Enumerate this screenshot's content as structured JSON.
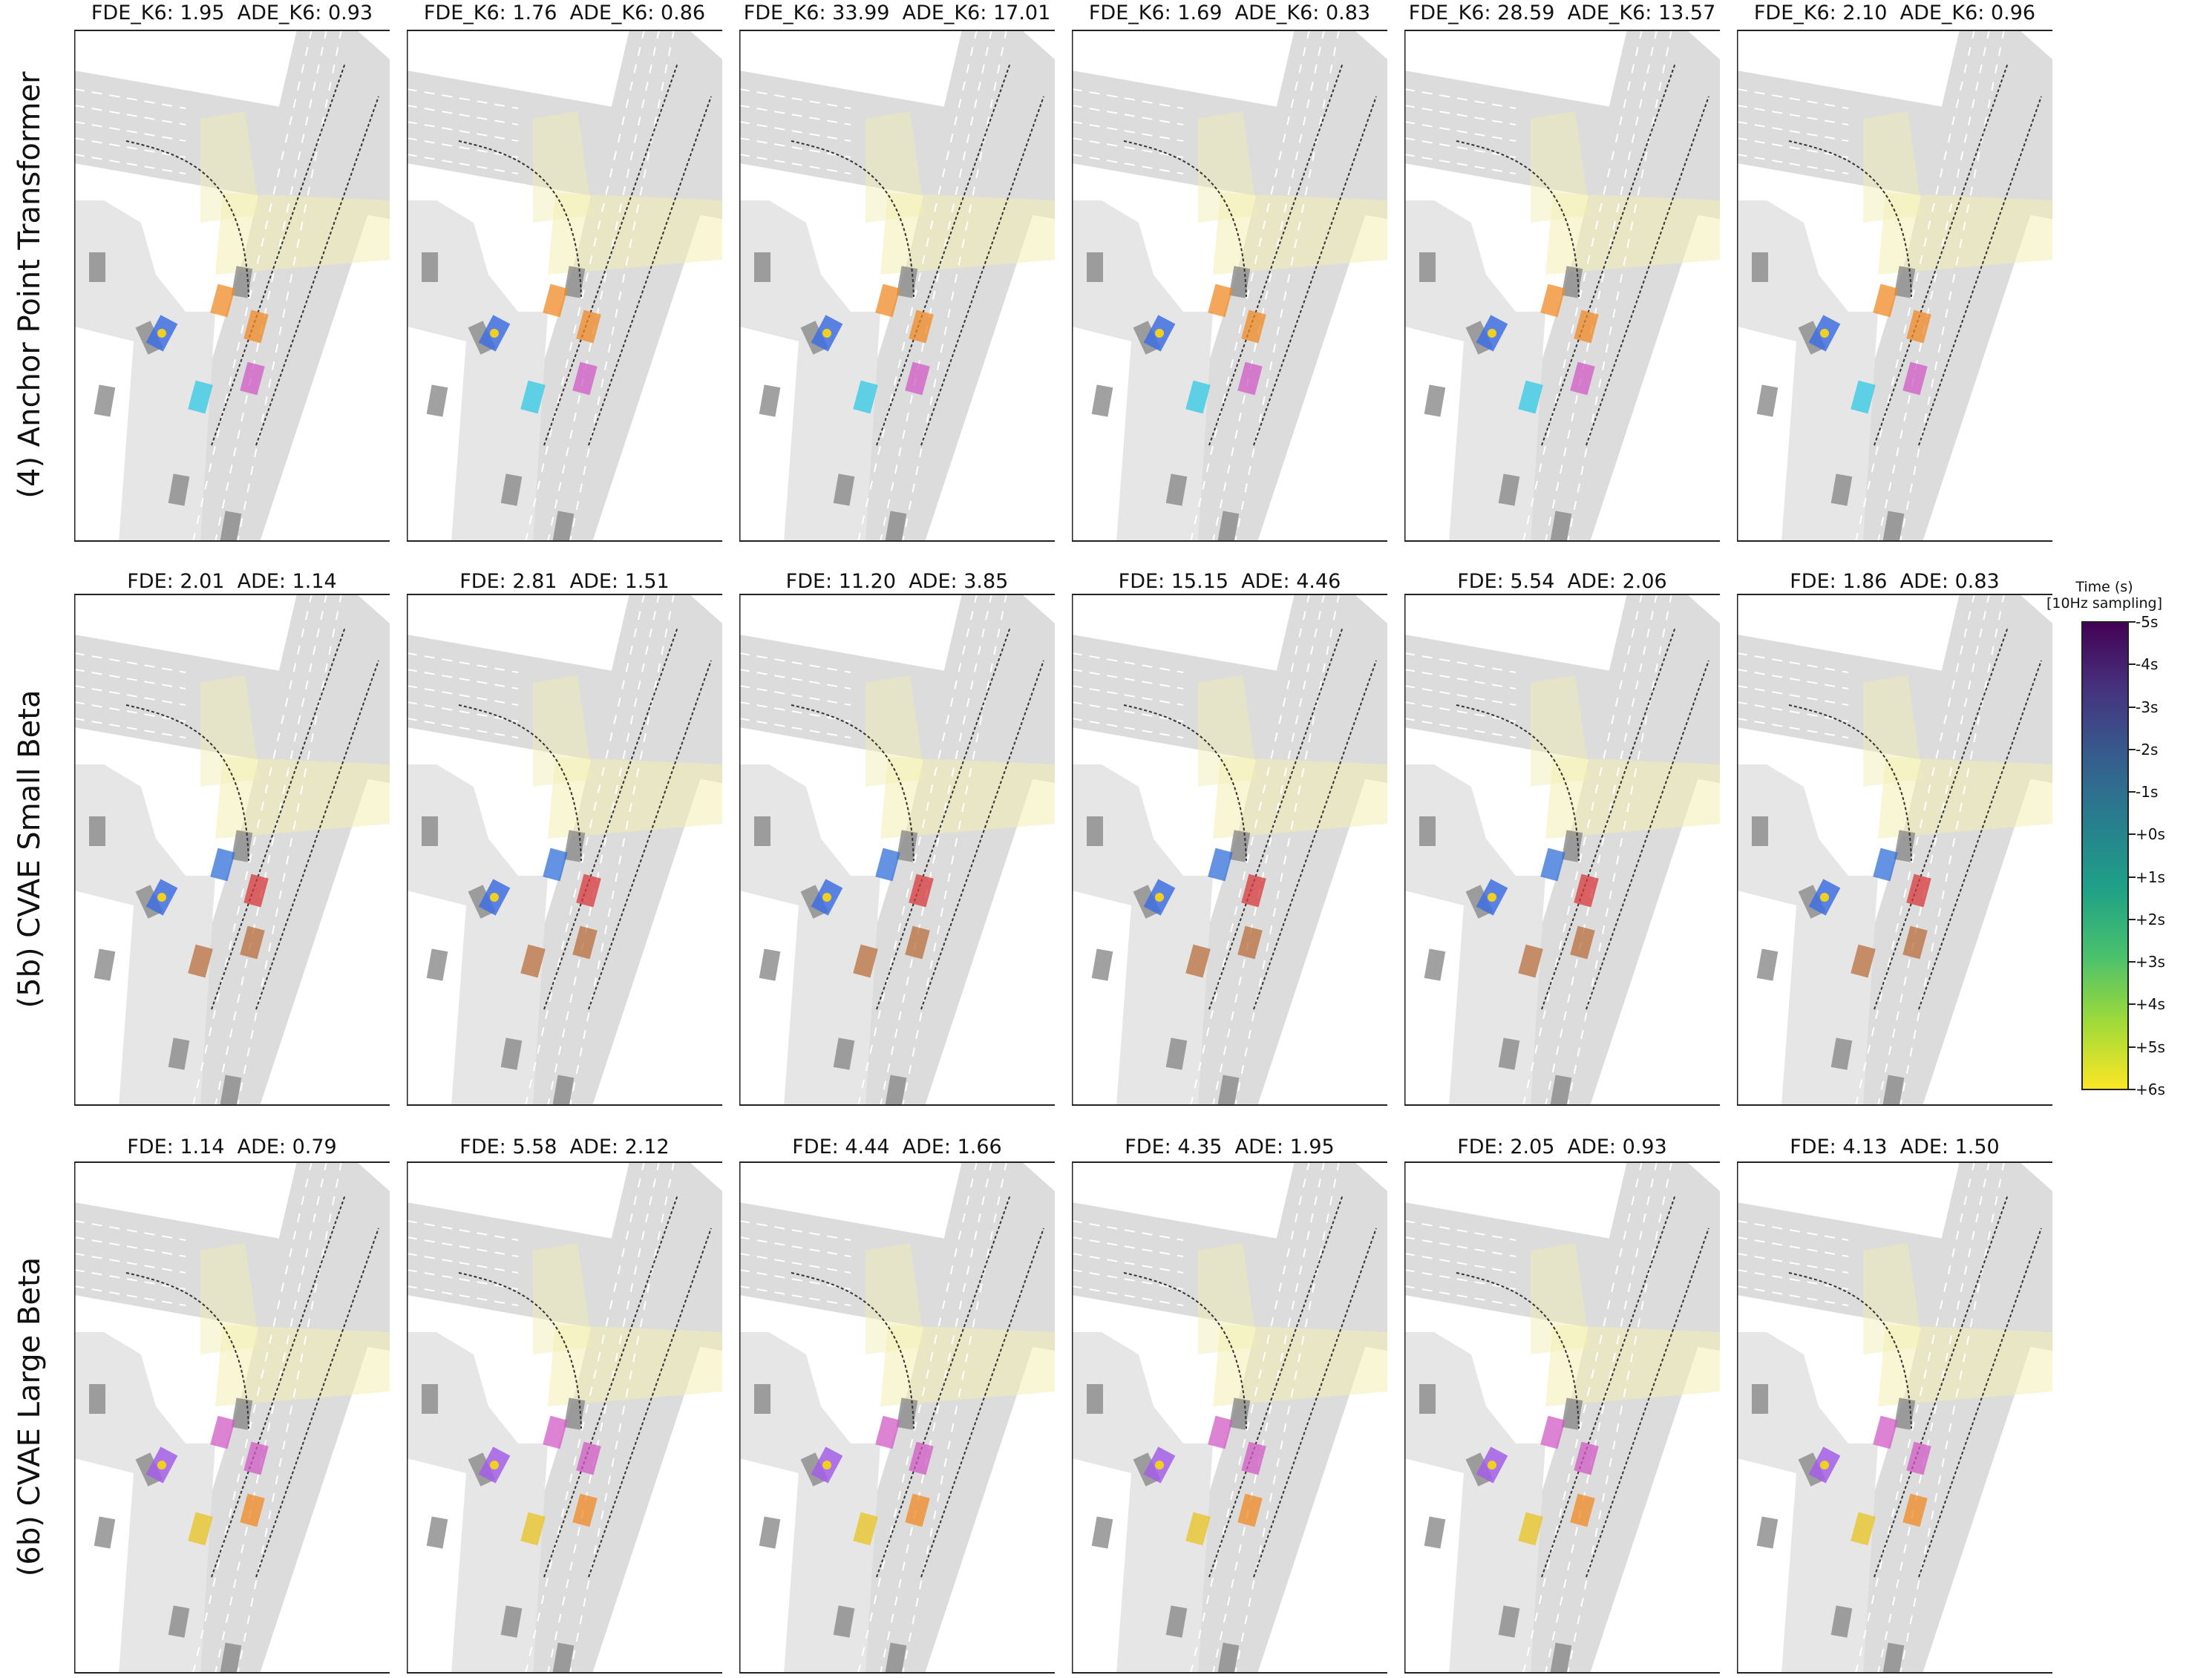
{
  "rows": [
    {
      "label": "(4) Anchor Point Transformer",
      "agent_color": "#3f6fe0",
      "panels": [
        {
          "title": "FDE_K6: 1.95  ADE_K6: 0.93",
          "markers": [
            "#f08a24",
            "#f08a24",
            "#2fc8e6",
            "#d05bc4"
          ],
          "variant": "good"
        },
        {
          "title": "FDE_K6: 1.76  ADE_K6: 0.86",
          "markers": [
            "#f08a24",
            "#f08a24",
            "#2fc8e6",
            "#d05bc4"
          ],
          "variant": "good"
        },
        {
          "title": "FDE_K6: 33.99  ADE_K6: 17.01",
          "markers": [
            "#f08a24",
            "#f08a24",
            "#2fc8e6",
            "#d05bc4"
          ],
          "variant": "bad"
        },
        {
          "title": "FDE_K6: 1.69  ADE_K6: 0.83",
          "markers": [
            "#f08a24",
            "#f08a24",
            "#2fc8e6",
            "#d05bc4"
          ],
          "variant": "good"
        },
        {
          "title": "FDE_K6: 28.59  ADE_K6: 13.57",
          "markers": [
            "#f08a24",
            "#f08a24",
            "#2fc8e6",
            "#d05bc4"
          ],
          "variant": "bad"
        },
        {
          "title": "FDE_K6: 2.10  ADE_K6: 0.96",
          "markers": [
            "#f08a24",
            "#f08a24",
            "#2fc8e6",
            "#d05bc4"
          ],
          "variant": "good"
        }
      ]
    },
    {
      "label": "(5b) CVAE Small Beta",
      "agent_color": "#3f6fe0",
      "panels": [
        {
          "title": "FDE: 2.01  ADE: 1.14",
          "markers": [
            "#2f6fd8",
            "#d8383c",
            "#b86e3c",
            "#b86e3c"
          ],
          "variant": "good"
        },
        {
          "title": "FDE: 2.81  ADE: 1.51",
          "markers": [
            "#2f6fd8",
            "#d8383c",
            "#b86e3c",
            "#b86e3c"
          ],
          "variant": "good"
        },
        {
          "title": "FDE: 11.20  ADE: 3.85",
          "markers": [
            "#2f6fd8",
            "#d8383c",
            "#b86e3c",
            "#b86e3c"
          ],
          "variant": "mid"
        },
        {
          "title": "FDE: 15.15  ADE: 4.46",
          "markers": [
            "#2f6fd8",
            "#d8383c",
            "#b86e3c",
            "#b86e3c"
          ],
          "variant": "mid"
        },
        {
          "title": "FDE: 5.54  ADE: 2.06",
          "markers": [
            "#2f6fd8",
            "#d8383c",
            "#b86e3c",
            "#b86e3c"
          ],
          "variant": "good"
        },
        {
          "title": "FDE: 1.86  ADE: 0.83",
          "markers": [
            "#2f6fd8",
            "#d8383c",
            "#b86e3c",
            "#b86e3c"
          ],
          "variant": "good"
        }
      ]
    },
    {
      "label": "(6b) CVAE Large Beta",
      "agent_color": "#a25ee6",
      "panels": [
        {
          "title": "FDE: 1.14  ADE: 0.79",
          "markers": [
            "#d05bc4",
            "#d05bc4",
            "#e8c21f",
            "#f08a24"
          ],
          "variant": "good"
        },
        {
          "title": "FDE: 5.58  ADE: 2.12",
          "markers": [
            "#d05bc4",
            "#d05bc4",
            "#e8c21f",
            "#f08a24"
          ],
          "variant": "good"
        },
        {
          "title": "FDE: 4.44  ADE: 1.66",
          "markers": [
            "#d05bc4",
            "#d05bc4",
            "#e8c21f",
            "#f08a24"
          ],
          "variant": "mid"
        },
        {
          "title": "FDE: 4.35  ADE: 1.95",
          "markers": [
            "#d05bc4",
            "#d05bc4",
            "#e8c21f",
            "#f08a24"
          ],
          "variant": "mid"
        },
        {
          "title": "FDE: 2.05  ADE: 0.93",
          "markers": [
            "#d05bc4",
            "#d05bc4",
            "#e8c21f",
            "#f08a24"
          ],
          "variant": "good"
        },
        {
          "title": "FDE: 4.13  ADE: 1.50",
          "markers": [
            "#d05bc4",
            "#d05bc4",
            "#e8c21f",
            "#f08a24"
          ],
          "variant": "good"
        }
      ]
    }
  ],
  "colorbar": {
    "title_line1": "Time (s)",
    "title_line2": "[10Hz sampling]",
    "ticks": [
      "-5s",
      "-4s",
      "-3s",
      "-2s",
      "-1s",
      "+0s",
      "+1s",
      "+2s",
      "+3s",
      "+4s",
      "+5s",
      "+6s"
    ],
    "colormap": [
      "#440154",
      "#46327e",
      "#365c8d",
      "#277f8e",
      "#1fa187",
      "#4ac16d",
      "#a0da39",
      "#fde725"
    ]
  },
  "scene_colors": {
    "road": "#dcdcdc",
    "road_dark": "#c8c8c8",
    "crosswalk": "#f2eeb0",
    "obstacle": "#8a8a8a",
    "gt_line": "#333333"
  }
}
